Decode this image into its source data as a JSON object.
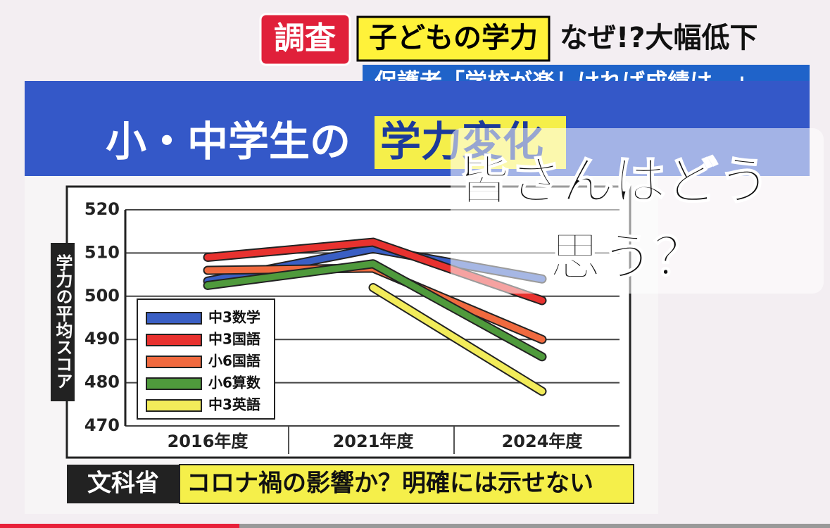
{
  "header": {
    "tag": "調査",
    "topic": "子どもの学力",
    "headline": "なぜ!?大幅低下",
    "subline": "保護者「学校が楽しければ成績は…」"
  },
  "board": {
    "title_lead": "小・中学生の",
    "title_highlight": "学力変化"
  },
  "overlay": {
    "line1": "皆さんはどう",
    "line2": "思う？"
  },
  "caption": {
    "source": "文科省",
    "text": "コロナ禍の影響か？明確には示せない"
  },
  "chart_data": {
    "type": "line",
    "y_label": "学力の平均スコア",
    "categories": [
      "2016年度",
      "2021年度",
      "2024年度"
    ],
    "series": [
      {
        "name": "中3数学",
        "color": "#3a5fc4",
        "values": [
          503.5,
          511,
          504
        ]
      },
      {
        "name": "中3国語",
        "color": "#e8322f",
        "values": [
          509,
          512.5,
          499
        ]
      },
      {
        "name": "小6国語",
        "color": "#f06a3f",
        "values": [
          506,
          506.5,
          490
        ]
      },
      {
        "name": "小6算数",
        "color": "#4f9a3c",
        "values": [
          502.5,
          507.5,
          486
        ]
      },
      {
        "name": "中3英語",
        "color": "#f2ec5a",
        "values": [
          null,
          502,
          478
        ]
      }
    ],
    "ylim": [
      470,
      520
    ],
    "yticks": [
      470,
      480,
      490,
      500,
      510,
      520
    ],
    "grid": true
  }
}
